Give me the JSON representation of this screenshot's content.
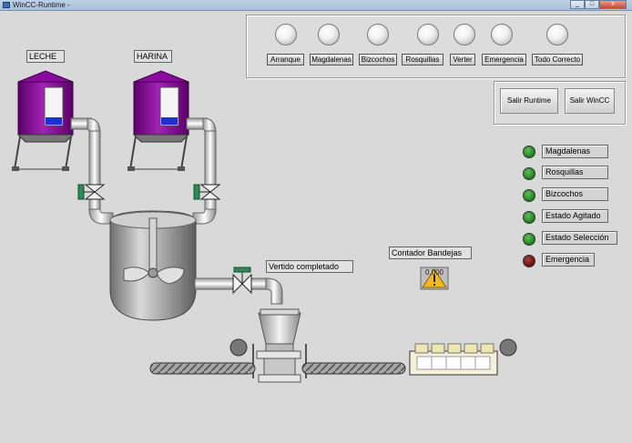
{
  "window": {
    "title": "WinCC-Runtime -",
    "controls": [
      "_",
      "□",
      "x"
    ]
  },
  "indicators": [
    {
      "label": "Arranque"
    },
    {
      "label": "Magdalenas"
    },
    {
      "label": "Bizcochos"
    },
    {
      "label": "Rosquillas"
    },
    {
      "label": "Verter"
    },
    {
      "label": "Emergencia"
    },
    {
      "label": "Todo Correcto"
    }
  ],
  "buttons": {
    "exit_runtime": "Salir Runtime",
    "exit_wincc": "Salir WinCC"
  },
  "status": [
    {
      "label": "Magdalenas",
      "color": "#1d7f1d"
    },
    {
      "label": "Rosquillas",
      "color": "#1d7f1d"
    },
    {
      "label": "Bizcochos",
      "color": "#1d7f1d"
    },
    {
      "label": "Estado Agitado",
      "color": "#1d7f1d"
    },
    {
      "label": "Estado Selección",
      "color": "#1d7f1d"
    },
    {
      "label": "Emergencia",
      "color": "#6a0c0c"
    }
  ],
  "process": {
    "silo1": "LECHE",
    "silo2": "HARINA",
    "pour_label": "Vertido completado",
    "counter_title": "Contador Bandejas",
    "counter_value": "0,000"
  },
  "colors": {
    "silo": "#8a0a9e",
    "valve": "#2e8b57",
    "level": "#1f2fd6"
  }
}
